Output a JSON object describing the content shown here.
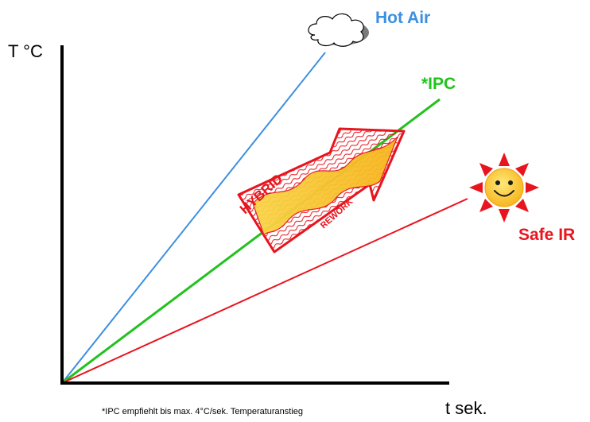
{
  "axes": {
    "y_label": "T °C",
    "x_label": "t sek."
  },
  "lines": {
    "hot_air": {
      "label": "Hot Air",
      "color": "#3d8fe0"
    },
    "ipc": {
      "label": "*IPC",
      "color": "#22c21e"
    },
    "safe_ir": {
      "label": "Safe IR",
      "color": "#e8141e"
    }
  },
  "arrow": {
    "word_top": "HYBRID",
    "word_bottom": "REWORK"
  },
  "footnote": "*IPC empfiehlt bis max. 4°C/sek. Temperaturanstieg",
  "icons": {
    "hot_air": "cloud-icon",
    "safe_ir": "smiling-sun-icon",
    "hybrid": "wave-arrow-icon"
  }
}
